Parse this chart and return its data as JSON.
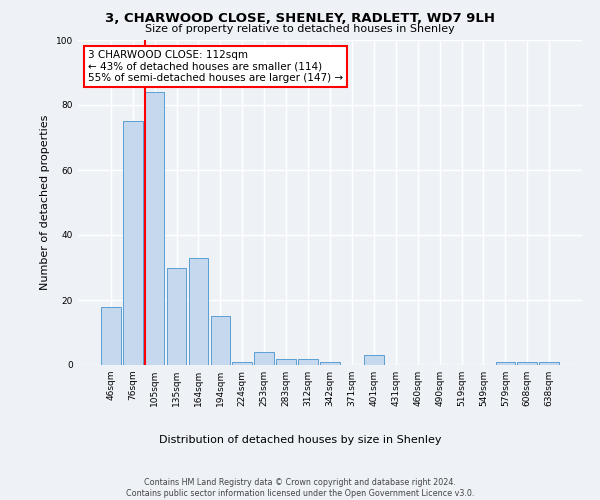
{
  "title1": "3, CHARWOOD CLOSE, SHENLEY, RADLETT, WD7 9LH",
  "title2": "Size of property relative to detached houses in Shenley",
  "xlabel": "Distribution of detached houses by size in Shenley",
  "ylabel": "Number of detached properties",
  "bar_color": "#c5d8ed",
  "bar_edge_color": "#5a9fd4",
  "categories": [
    "46sqm",
    "76sqm",
    "105sqm",
    "135sqm",
    "164sqm",
    "194sqm",
    "224sqm",
    "253sqm",
    "283sqm",
    "312sqm",
    "342sqm",
    "371sqm",
    "401sqm",
    "431sqm",
    "460sqm",
    "490sqm",
    "519sqm",
    "549sqm",
    "579sqm",
    "608sqm",
    "638sqm"
  ],
  "values": [
    18,
    75,
    84,
    30,
    33,
    15,
    1,
    4,
    2,
    2,
    1,
    0,
    3,
    0,
    0,
    0,
    0,
    0,
    1,
    1,
    1
  ],
  "ylim": [
    0,
    100
  ],
  "yticks": [
    0,
    20,
    40,
    60,
    80,
    100
  ],
  "red_line_x": 2,
  "annotation_title": "3 CHARWOOD CLOSE: 112sqm",
  "annotation_line1": "← 43% of detached houses are smaller (114)",
  "annotation_line2": "55% of semi-detached houses are larger (147) →",
  "footer_line1": "Contains HM Land Registry data © Crown copyright and database right 2024.",
  "footer_line2": "Contains public sector information licensed under the Open Government Licence v3.0.",
  "background_color": "#eef2f7",
  "grid_color": "#ffffff"
}
